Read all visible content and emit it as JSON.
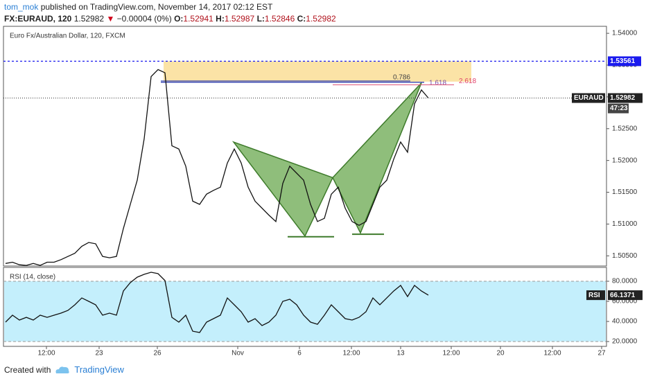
{
  "header": {
    "author": "tom_mok",
    "published": "published on TradingView.com, November 14, 2017 02:12 EST",
    "symbol": "FX:EURAUD, 120",
    "last": "1.52982",
    "direction": "▼",
    "change": "−0.00004 (0%)",
    "ohlc": [
      {
        "key": "O:",
        "value": "1.52941"
      },
      {
        "key": "H:",
        "value": "1.52987"
      },
      {
        "key": "L:",
        "value": "1.52846"
      },
      {
        "key": "C:",
        "value": "1.52982"
      }
    ]
  },
  "chart_data": [
    {
      "type": "line",
      "title": "Euro Fx/Australian Dollar, 120, FXCM",
      "color": "#111111",
      "x": [
        0,
        1,
        2,
        3,
        4,
        5,
        6,
        7,
        8,
        9,
        10,
        11,
        12,
        13,
        14,
        15,
        16,
        17,
        18,
        19,
        20,
        21,
        22,
        23,
        24,
        25,
        26,
        27,
        28,
        29,
        30,
        31,
        32,
        33,
        34,
        35,
        36,
        37,
        38,
        39,
        40,
        41,
        42,
        43,
        44,
        45,
        46,
        47,
        48,
        49,
        50,
        51,
        52,
        53,
        54,
        55,
        56,
        57,
        58,
        59,
        60,
        61
      ],
      "values": [
        1.5038,
        1.504,
        1.5036,
        1.5035,
        1.5038,
        1.5035,
        1.504,
        1.504,
        1.5044,
        1.5049,
        1.5054,
        1.5065,
        1.5071,
        1.5069,
        1.5049,
        1.5047,
        1.5049,
        1.5093,
        1.5131,
        1.5169,
        1.5234,
        1.5332,
        1.5343,
        1.5338,
        1.5223,
        1.5218,
        1.5191,
        1.5136,
        1.5131,
        1.5147,
        1.5153,
        1.5158,
        1.5196,
        1.5218,
        1.5196,
        1.5158,
        1.5136,
        1.5125,
        1.5114,
        1.5104,
        1.5164,
        1.5191,
        1.518,
        1.5169,
        1.5131,
        1.5104,
        1.5109,
        1.5147,
        1.5158,
        1.5125,
        1.5104,
        1.5098,
        1.5104,
        1.5131,
        1.5158,
        1.5169,
        1.5202,
        1.5229,
        1.5213,
        1.5289,
        1.5311,
        1.52982
      ],
      "xlim": [
        -0.3,
        86.7
      ],
      "xticks": [
        {
          "value": 5.9,
          "label": "12:00"
        },
        {
          "value": 13.5,
          "label": "23"
        },
        {
          "value": 21.9,
          "label": "26"
        },
        {
          "value": 33.5,
          "label": "Nov"
        },
        {
          "value": 42.4,
          "label": "6"
        },
        {
          "value": 49.9,
          "label": "12:00"
        },
        {
          "value": 57,
          "label": "13"
        },
        {
          "value": 64.3,
          "label": "12:00"
        },
        {
          "value": 71.4,
          "label": "20"
        },
        {
          "value": 78.9,
          "label": "12:00"
        },
        {
          "value": 86,
          "label": "27"
        }
      ],
      "ylim": [
        1.5034,
        1.5411
      ],
      "yticks": [
        {
          "value": 1.505,
          "label": "1.50500"
        },
        {
          "value": 1.51,
          "label": "1.51000"
        },
        {
          "value": 1.515,
          "label": "1.51500"
        },
        {
          "value": 1.52,
          "label": "1.52000"
        },
        {
          "value": 1.525,
          "label": "1.52500"
        },
        {
          "value": 1.53,
          "label": "1.53000"
        },
        {
          "value": 1.535,
          "label": "1.53500"
        },
        {
          "value": 1.54,
          "label": "1.54000"
        }
      ],
      "grid": false,
      "zone": {
        "color": "#fbe3a6",
        "x": [
          22.8,
          67.2
        ],
        "y": [
          1.5324,
          1.5356
        ]
      },
      "pattern": {
        "color": "#6aa84f",
        "points": [
          {
            "x": 32.9,
            "y": 1.5229
          },
          {
            "x": 43.2,
            "y": 1.5081
          },
          {
            "x": 47.2,
            "y": 1.5173
          },
          {
            "x": 51.2,
            "y": 1.5086
          },
          {
            "x": 60,
            "y": 1.5322
          }
        ]
      },
      "supports": [
        {
          "value": 1.508,
          "x": [
            40.7,
            47.4
          ]
        },
        {
          "value": 1.5084,
          "x": [
            50,
            54.6
          ]
        }
      ],
      "fib": [
        {
          "label": "0.786",
          "value": 1.5325,
          "x": [
            22.4,
            58.4
          ],
          "color": "#2233aa",
          "text_color": "#444444"
        },
        {
          "label": "1.618",
          "value": 1.5323,
          "x": [
            22.4,
            60.4
          ],
          "color": "#2233aa",
          "text_color": "#7a4ea8"
        },
        {
          "label": "2.618",
          "value": 1.5319,
          "x": [
            47.2,
            64.7
          ],
          "color": "#e06080",
          "text_color": "#e0406a"
        }
      ],
      "levels": [
        {
          "value": 1.53561,
          "label": "1.53561",
          "color": "#1a1aee"
        }
      ],
      "last_name": "EURAUD",
      "countdown": "47:23"
    },
    {
      "type": "line",
      "title": "RSI (14, close)",
      "color": "#111111",
      "x": [
        0,
        1,
        2,
        3,
        4,
        5,
        6,
        7,
        8,
        9,
        10,
        11,
        12,
        13,
        14,
        15,
        16,
        17,
        18,
        19,
        20,
        21,
        22,
        23,
        24,
        25,
        26,
        27,
        28,
        29,
        30,
        31,
        32,
        33,
        34,
        35,
        36,
        37,
        38,
        39,
        40,
        41,
        42,
        43,
        44,
        45,
        46,
        47,
        48,
        49,
        50,
        51,
        52,
        53,
        54,
        55,
        56,
        57,
        58,
        59,
        60,
        61
      ],
      "values": [
        39.3,
        46.2,
        41.4,
        44.1,
        41.4,
        46.2,
        44.1,
        46.2,
        48.3,
        51.0,
        56.6,
        63.4,
        60.0,
        56.6,
        46.2,
        48.3,
        46.2,
        70.3,
        78.6,
        84.1,
        86.9,
        89.0,
        87.6,
        80.7,
        44.1,
        39.3,
        46.2,
        30.3,
        29.0,
        39.3,
        42.8,
        46.2,
        63.4,
        56.6,
        49.7,
        39.3,
        42.8,
        35.9,
        39.3,
        46.2,
        60.0,
        62.1,
        56.6,
        46.2,
        39.3,
        37.2,
        46.2,
        56.6,
        49.7,
        42.8,
        41.4,
        44.1,
        49.7,
        63.4,
        56.6,
        63.4,
        70.3,
        75.9,
        64.8,
        75.9,
        70.3,
        66.1371
      ],
      "xlim": [
        -0.3,
        86.7
      ],
      "ylim": [
        15.2,
        93.8
      ],
      "yticks": [
        {
          "value": 20,
          "label": "20.0000"
        },
        {
          "value": 40,
          "label": "40.0000"
        },
        {
          "value": 60,
          "label": "60.0000"
        },
        {
          "value": 80,
          "label": "80.0000"
        }
      ],
      "band": [
        20,
        80
      ],
      "band_color": "#c4effc",
      "last_name": "RSI"
    }
  ],
  "footer": {
    "created": "Created with",
    "brand": "TradingView"
  }
}
